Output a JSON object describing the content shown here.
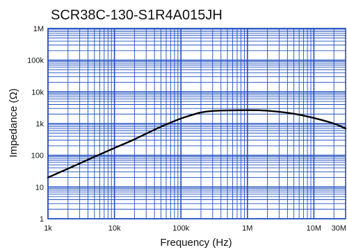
{
  "chart_data": {
    "type": "line",
    "title": "SCR38C-130-S1R4A015JH",
    "xlabel": "Frequency (Hz)",
    "ylabel": "Impedance (Ω)",
    "x_scale": "log",
    "y_scale": "log",
    "xlim": [
      1000,
      30000000
    ],
    "ylim": [
      1,
      1000000
    ],
    "x_ticks": [
      {
        "value": 1000,
        "label": "1k"
      },
      {
        "value": 10000,
        "label": "10k"
      },
      {
        "value": 100000,
        "label": "100k"
      },
      {
        "value": 1000000,
        "label": "1M"
      },
      {
        "value": 10000000,
        "label": "10M"
      },
      {
        "value": 30000000,
        "label": "30M"
      }
    ],
    "y_ticks": [
      {
        "value": 1,
        "label": "1"
      },
      {
        "value": 10,
        "label": "10"
      },
      {
        "value": 100,
        "label": "100"
      },
      {
        "value": 1000,
        "label": "1k"
      },
      {
        "value": 10000,
        "label": "10k"
      },
      {
        "value": 100000,
        "label": "100k"
      },
      {
        "value": 1000000,
        "label": "1M"
      }
    ],
    "grid": true,
    "colors": {
      "grid": "#1f4fbf",
      "line": "#000000"
    },
    "series": [
      {
        "x": [
          1000,
          2000,
          5000,
          10000,
          20000,
          50000,
          100000,
          150000,
          200000,
          300000,
          500000,
          1000000,
          2000000,
          5000000,
          10000000,
          20000000,
          30000000
        ],
        "y": [
          20,
          38,
          90,
          170,
          320,
          800,
          1450,
          1900,
          2250,
          2500,
          2600,
          2650,
          2550,
          2050,
          1500,
          1000,
          700
        ]
      }
    ]
  }
}
